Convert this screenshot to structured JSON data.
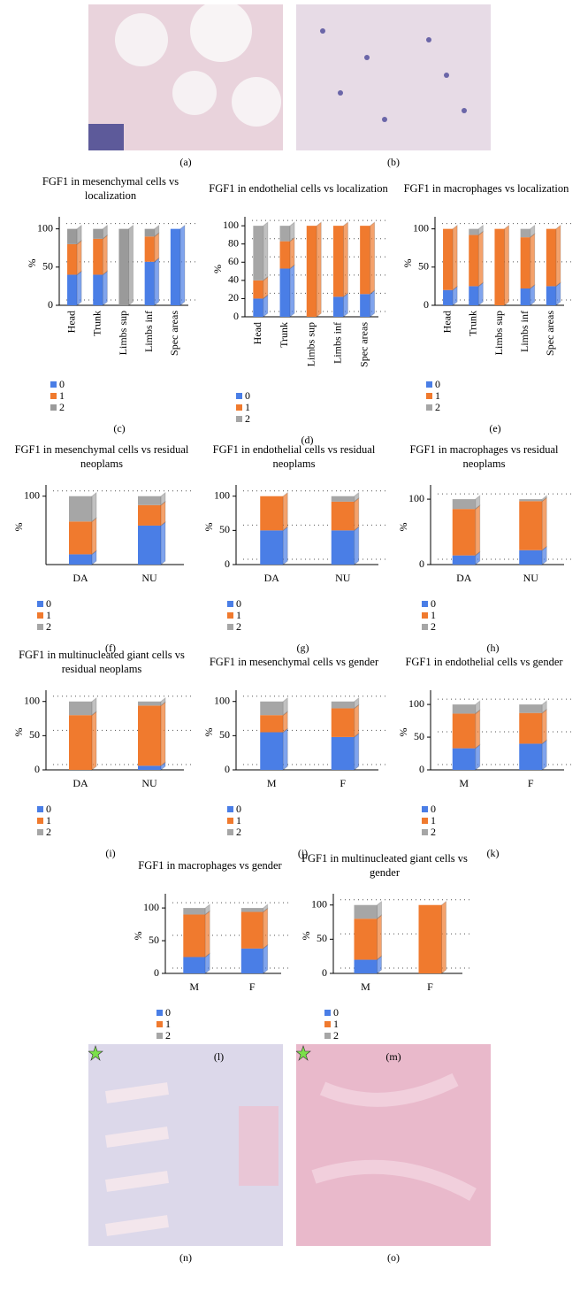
{
  "images": [
    {
      "label": "(a)"
    },
    {
      "label": "(b)"
    },
    {
      "label": "(n)"
    },
    {
      "label": "(o)"
    }
  ],
  "chart_data": [
    {
      "type": "bar",
      "stacked": true,
      "panel_label": "(c)",
      "title": "FGF1 in mesenchymal cells vs localization",
      "ylabel": "%",
      "categories": [
        "Head",
        "Trunk",
        "Limbs sup",
        "Limbs inf",
        "Spec areas"
      ],
      "series": [
        {
          "name": "0",
          "color": "#4a7ee6",
          "values": [
            40,
            40,
            0,
            57,
            100
          ]
        },
        {
          "name": "1",
          "color": "#f07a2e",
          "values": [
            40,
            47,
            0,
            33,
            0
          ]
        },
        {
          "name": "2",
          "color": "#9a9a9a",
          "values": [
            20,
            13,
            100,
            10,
            0
          ]
        }
      ],
      "ylim": [
        0,
        110
      ],
      "yticks": [
        0,
        50,
        100
      ],
      "grid": true
    },
    {
      "type": "bar",
      "stacked": true,
      "panel_label": "(d)",
      "title": "FGF1 in endothelial cells vs localization",
      "ylabel": "%",
      "categories": [
        "Head",
        "Trunk",
        "Limbs sup",
        "Limbs inf",
        "Spec areas"
      ],
      "series": [
        {
          "name": "0",
          "color": "#4a7ee6",
          "values": [
            20,
            53,
            0,
            22,
            25
          ]
        },
        {
          "name": "1",
          "color": "#f07a2e",
          "values": [
            20,
            30,
            100,
            78,
            75
          ]
        },
        {
          "name": "2",
          "color": "#a6a6a6",
          "values": [
            60,
            17,
            0,
            0,
            0
          ]
        }
      ],
      "ylim": [
        0,
        105
      ],
      "yticks": [
        0,
        20,
        40,
        60,
        80,
        100
      ],
      "grid": true
    },
    {
      "type": "bar",
      "stacked": true,
      "panel_label": "(e)",
      "title": "FGF1 in macrophages vs localization",
      "ylabel": "%",
      "categories": [
        "Head",
        "Trunk",
        "Limbs sup",
        "Limbs inf",
        "Spec areas"
      ],
      "series": [
        {
          "name": "0",
          "color": "#4a7ee6",
          "values": [
            20,
            25,
            0,
            22,
            25
          ]
        },
        {
          "name": "1",
          "color": "#f07a2e",
          "values": [
            80,
            67,
            100,
            67,
            75
          ]
        },
        {
          "name": "2",
          "color": "#a6a6a6",
          "values": [
            0,
            8,
            0,
            11,
            0
          ]
        }
      ],
      "ylim": [
        0,
        110
      ],
      "yticks": [
        0,
        50,
        100
      ],
      "grid": true
    },
    {
      "type": "bar",
      "stacked": true,
      "panel_label": "(f)",
      "title": "FGF1 in mesenchymal cells vs residual neoplams",
      "ylabel": "%",
      "categories": [
        "DA",
        "NU"
      ],
      "series": [
        {
          "name": "0",
          "color": "#4a7ee6",
          "values": [
            15,
            57
          ]
        },
        {
          "name": "1",
          "color": "#f07a2e",
          "values": [
            48,
            30
          ]
        },
        {
          "name": "2",
          "color": "#a6a6a6",
          "values": [
            37,
            13
          ]
        }
      ],
      "ylim": [
        0,
        110
      ],
      "yticks": [
        100
      ],
      "grid": true
    },
    {
      "type": "bar",
      "stacked": true,
      "panel_label": "(g)",
      "title": "FGF1 in endothelial cells vs residual neoplams",
      "ylabel": "%",
      "categories": [
        "DA",
        "NU"
      ],
      "series": [
        {
          "name": "0",
          "color": "#4a7ee6",
          "values": [
            50,
            50
          ]
        },
        {
          "name": "1",
          "color": "#f07a2e",
          "values": [
            50,
            42
          ]
        },
        {
          "name": "2",
          "color": "#a6a6a6",
          "values": [
            0,
            8
          ]
        }
      ],
      "ylim": [
        0,
        110
      ],
      "yticks": [
        0,
        50,
        100
      ],
      "grid": true
    },
    {
      "type": "bar",
      "stacked": true,
      "panel_label": "(h)",
      "title": "FGF1 in macrophages vs residual neoplams",
      "ylabel": "%",
      "categories": [
        "DA",
        "NU"
      ],
      "series": [
        {
          "name": "0",
          "color": "#4a7ee6",
          "values": [
            14,
            22
          ]
        },
        {
          "name": "1",
          "color": "#f07a2e",
          "values": [
            71,
            75
          ]
        },
        {
          "name": "2",
          "color": "#a6a6a6",
          "values": [
            15,
            3
          ]
        }
      ],
      "ylim": [
        0,
        115
      ],
      "yticks": [
        0,
        100
      ],
      "grid": true
    },
    {
      "type": "bar",
      "stacked": true,
      "panel_label": "(i)",
      "title": "FGF1 in multinucleated giant cells vs residual neoplams",
      "ylabel": "%",
      "categories": [
        "DA",
        "NU"
      ],
      "series": [
        {
          "name": "0",
          "color": "#4a7ee6",
          "values": [
            0,
            6
          ]
        },
        {
          "name": "1",
          "color": "#f07a2e",
          "values": [
            80,
            88
          ]
        },
        {
          "name": "2",
          "color": "#a6a6a6",
          "values": [
            20,
            6
          ]
        }
      ],
      "ylim": [
        0,
        110
      ],
      "yticks": [
        0,
        50,
        100
      ],
      "grid": true
    },
    {
      "type": "bar",
      "stacked": true,
      "panel_label": "(j)",
      "title": "FGF1 in mesenchymal cells vs gender",
      "ylabel": "%",
      "categories": [
        "M",
        "F"
      ],
      "series": [
        {
          "name": "0",
          "color": "#4a7ee6",
          "values": [
            55,
            48
          ]
        },
        {
          "name": "1",
          "color": "#f07a2e",
          "values": [
            25,
            42
          ]
        },
        {
          "name": "2",
          "color": "#a6a6a6",
          "values": [
            20,
            10
          ]
        }
      ],
      "ylim": [
        0,
        110
      ],
      "yticks": [
        0,
        50,
        100
      ],
      "grid": true
    },
    {
      "type": "bar",
      "stacked": true,
      "panel_label": "(k)",
      "title": "FGF1 in endothelial cells vs gender",
      "ylabel": "%",
      "categories": [
        "M",
        "F"
      ],
      "series": [
        {
          "name": "0",
          "color": "#4a7ee6",
          "values": [
            33,
            40
          ]
        },
        {
          "name": "1",
          "color": "#f07a2e",
          "values": [
            53,
            47
          ]
        },
        {
          "name": "2",
          "color": "#a6a6a6",
          "values": [
            14,
            13
          ]
        }
      ],
      "ylim": [
        0,
        115
      ],
      "yticks": [
        0,
        50,
        100
      ],
      "grid": true
    },
    {
      "type": "bar",
      "stacked": true,
      "panel_label": "(l)",
      "title": "FGF1 in macrophages vs gender",
      "ylabel": "%",
      "categories": [
        "M",
        "F"
      ],
      "series": [
        {
          "name": "0",
          "color": "#4a7ee6",
          "values": [
            25,
            38
          ]
        },
        {
          "name": "1",
          "color": "#f07a2e",
          "values": [
            65,
            56
          ]
        },
        {
          "name": "2",
          "color": "#a6a6a6",
          "values": [
            10,
            6
          ]
        }
      ],
      "ylim": [
        0,
        115
      ],
      "yticks": [
        0,
        50,
        100
      ],
      "grid": true
    },
    {
      "type": "bar",
      "stacked": true,
      "panel_label": "(m)",
      "title": "FGF1 in multinucleated giant cells vs gender",
      "ylabel": "%",
      "categories": [
        "M",
        "F"
      ],
      "series": [
        {
          "name": "0",
          "color": "#4a7ee6",
          "values": [
            20,
            0
          ]
        },
        {
          "name": "1",
          "color": "#f07a2e",
          "values": [
            60,
            100
          ]
        },
        {
          "name": "2",
          "color": "#a6a6a6",
          "values": [
            20,
            0
          ]
        }
      ],
      "ylim": [
        0,
        110
      ],
      "yticks": [
        0,
        50,
        100
      ],
      "grid": true
    }
  ]
}
